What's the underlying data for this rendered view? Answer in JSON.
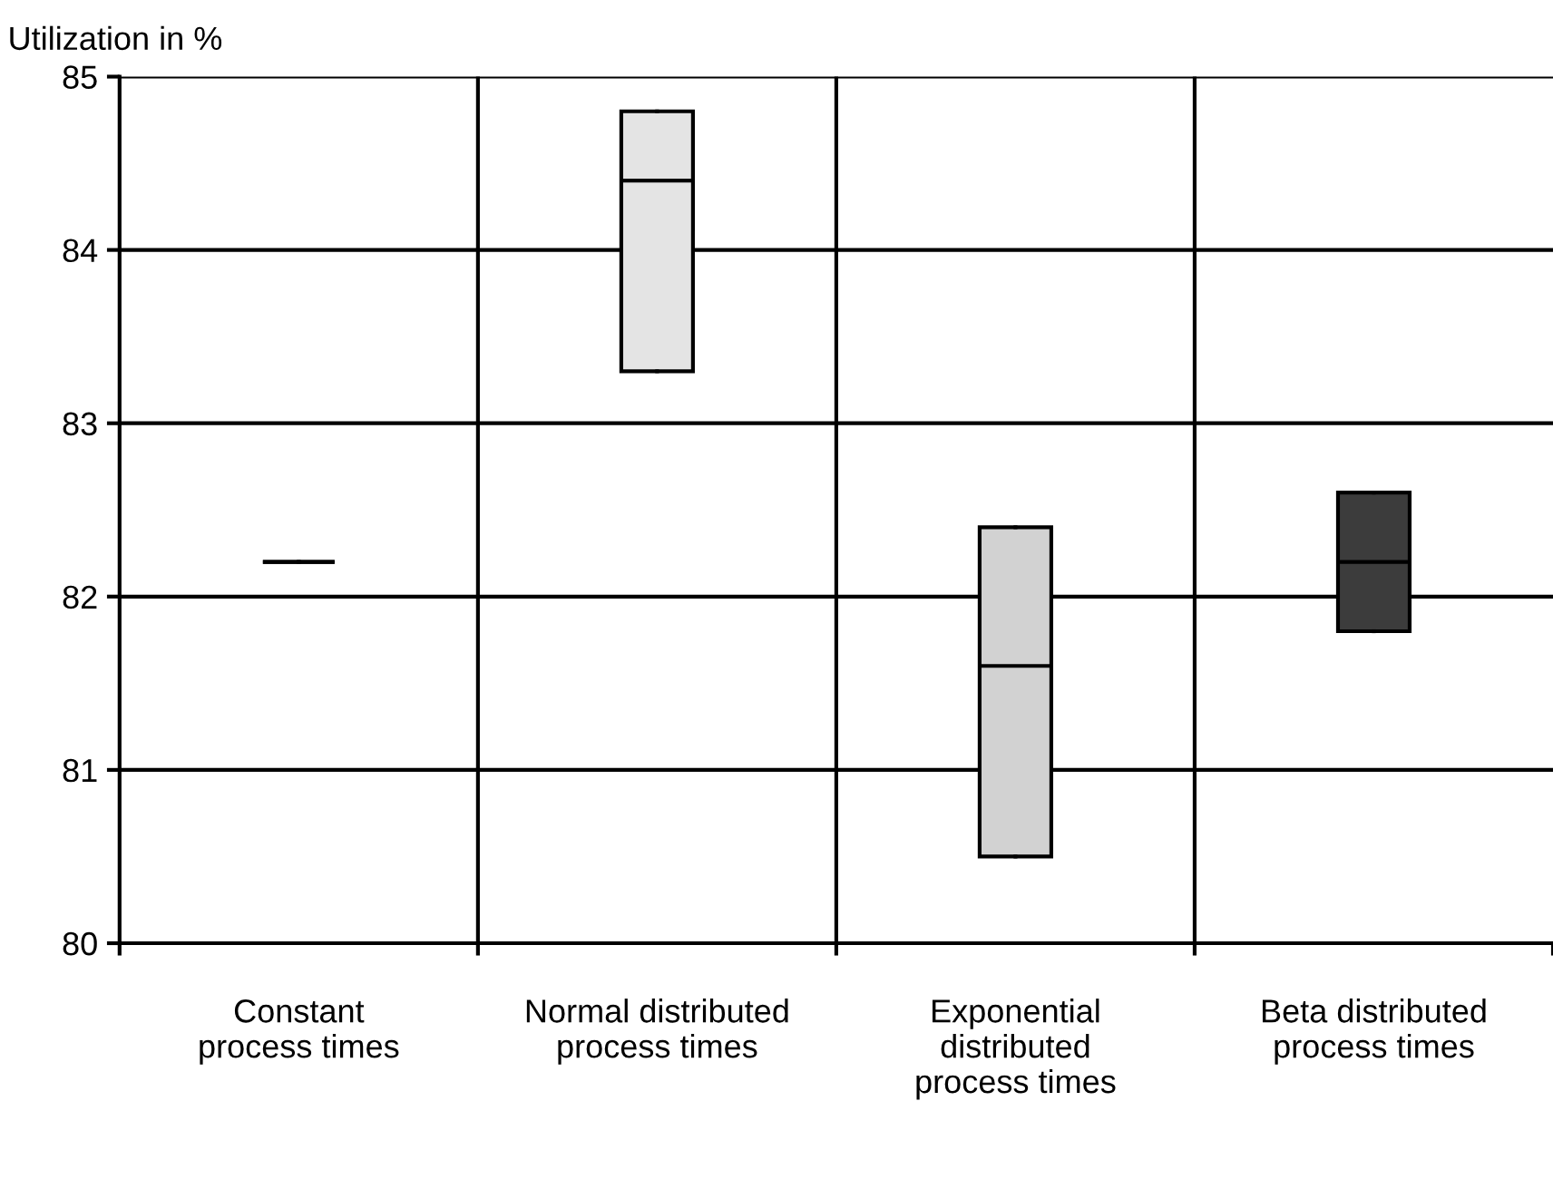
{
  "chart_data": {
    "type": "box",
    "ylabel": "Utilization in %",
    "categories": [
      "Constant\nprocess times",
      "Normal distributed\nprocess times",
      "Exponential\ndistributed\nprocess times",
      "Beta distributed\nprocess times"
    ],
    "colors": [
      "#000000",
      "#e4e4e4",
      "#d2d2d2",
      "#3c3c3c"
    ],
    "boxes": [
      {
        "low": 82.2,
        "q1": 82.2,
        "median": 82.2,
        "q3": 82.2,
        "high": 82.2
      },
      {
        "low": 83.3,
        "q1": 83.3,
        "median": 84.4,
        "q3": 84.8,
        "high": 84.8
      },
      {
        "low": 80.5,
        "q1": 80.5,
        "median": 81.6,
        "q3": 82.4,
        "high": 82.4
      },
      {
        "low": 81.8,
        "q1": 81.8,
        "median": 82.2,
        "q3": 82.6,
        "high": 82.6
      }
    ],
    "ylim": [
      80,
      85
    ],
    "yticks": [
      80,
      81,
      82,
      83,
      84,
      85
    ],
    "grid": true
  }
}
